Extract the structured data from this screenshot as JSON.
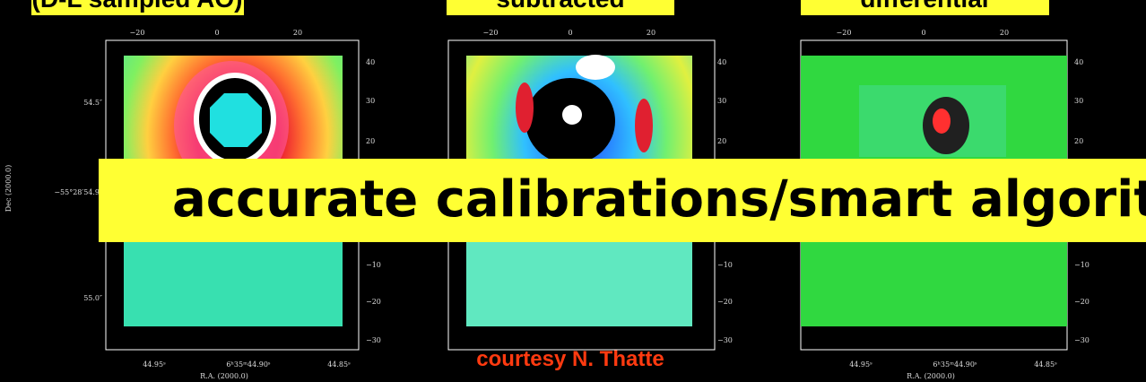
{
  "panels": [
    {
      "title": "(D-L sampled AO)",
      "top_ticks": [
        "−20",
        "0",
        "20"
      ],
      "right_ticks": [
        "40",
        "30",
        "20",
        "−10",
        "−20",
        "−30"
      ],
      "bottom_ticks": [
        "44.95ˢ",
        "6ʰ35ᵐ44.90ˢ",
        "44.85ˢ"
      ],
      "x_label": "R.A. (2000.0)",
      "left_ticks": [
        "54.5″",
        "−55°28′54.9″",
        "55.0″"
      ],
      "y_label": "Dec (2000.0)"
    },
    {
      "title": "subtracted",
      "top_ticks": [
        "−20",
        "0",
        "20"
      ],
      "right_ticks": [
        "40",
        "30",
        "20",
        "−10",
        "−20",
        "−30"
      ]
    },
    {
      "title": "differential",
      "top_ticks": [
        "−20",
        "0",
        "20"
      ],
      "right_ticks": [
        "40",
        "30",
        "20",
        "−10",
        "−20",
        "−30"
      ],
      "bottom_ticks": [
        "44.95ˢ",
        "6ʰ35ᵐ44.90ˢ",
        "44.85ˢ"
      ],
      "x_label": "R.A. (2000.0)"
    }
  ],
  "banner": "accurate calibrations/smart algorithms",
  "credit": "courtesy N. Thatte"
}
